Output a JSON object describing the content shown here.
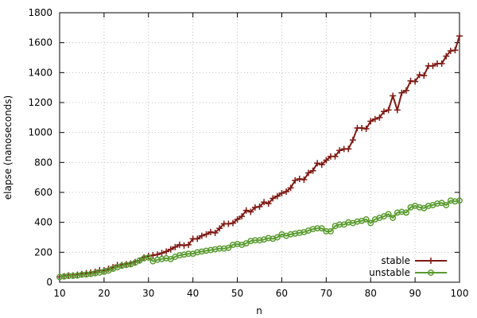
{
  "chart_data": {
    "type": "line",
    "xlabel": "n",
    "ylabel": "elapse (nanoseconds)",
    "xlim": [
      10,
      100
    ],
    "ylim": [
      0,
      1800
    ],
    "xticks": [
      10,
      20,
      30,
      40,
      50,
      60,
      70,
      80,
      90,
      100
    ],
    "yticks": [
      0,
      200,
      400,
      600,
      800,
      1000,
      1200,
      1400,
      1600,
      1800
    ],
    "grid": true,
    "legend_position": "bottom-right",
    "x": [
      10,
      11,
      12,
      13,
      14,
      15,
      16,
      17,
      18,
      19,
      20,
      21,
      22,
      23,
      24,
      25,
      26,
      27,
      28,
      29,
      30,
      31,
      32,
      33,
      34,
      35,
      36,
      37,
      38,
      39,
      40,
      41,
      42,
      43,
      44,
      45,
      46,
      47,
      48,
      49,
      50,
      51,
      52,
      53,
      54,
      55,
      56,
      57,
      58,
      59,
      60,
      61,
      62,
      63,
      64,
      65,
      66,
      67,
      68,
      69,
      70,
      71,
      72,
      73,
      74,
      75,
      76,
      77,
      78,
      79,
      80,
      81,
      82,
      83,
      84,
      85,
      86,
      87,
      88,
      89,
      90,
      91,
      92,
      93,
      94,
      95,
      96,
      97,
      98,
      99,
      100
    ],
    "series": [
      {
        "name": "stable",
        "color": "#7f1a14",
        "marker": "plus",
        "values": [
          35,
          40,
          45,
          45,
          50,
          55,
          60,
          65,
          70,
          80,
          80,
          90,
          100,
          115,
          115,
          120,
          125,
          135,
          145,
          165,
          175,
          180,
          185,
          195,
          205,
          220,
          235,
          250,
          245,
          250,
          290,
          290,
          310,
          320,
          335,
          330,
          360,
          390,
          390,
          395,
          420,
          440,
          480,
          470,
          500,
          505,
          535,
          525,
          560,
          575,
          595,
          605,
          630,
          680,
          690,
          685,
          730,
          745,
          795,
          785,
          815,
          840,
          840,
          880,
          890,
          890,
          950,
          1030,
          1030,
          1025,
          1075,
          1090,
          1100,
          1140,
          1150,
          1245,
          1150,
          1265,
          1280,
          1345,
          1340,
          1385,
          1380,
          1445,
          1445,
          1460,
          1460,
          1510,
          1545,
          1550,
          1645
        ]
      },
      {
        "name": "unstable",
        "color": "#5a9b30",
        "marker": "circle",
        "values": [
          35,
          38,
          42,
          43,
          45,
          50,
          52,
          55,
          60,
          65,
          70,
          78,
          90,
          100,
          110,
          115,
          120,
          130,
          145,
          160,
          165,
          140,
          150,
          155,
          160,
          155,
          170,
          180,
          185,
          190,
          190,
          200,
          205,
          210,
          215,
          220,
          225,
          225,
          230,
          250,
          255,
          250,
          260,
          275,
          280,
          280,
          285,
          295,
          290,
          300,
          320,
          310,
          320,
          325,
          330,
          335,
          345,
          355,
          360,
          360,
          340,
          340,
          375,
          385,
          385,
          400,
          395,
          405,
          410,
          420,
          395,
          420,
          430,
          440,
          455,
          430,
          465,
          470,
          465,
          500,
          510,
          500,
          495,
          510,
          515,
          525,
          530,
          515,
          545,
          540,
          545
        ]
      }
    ]
  }
}
